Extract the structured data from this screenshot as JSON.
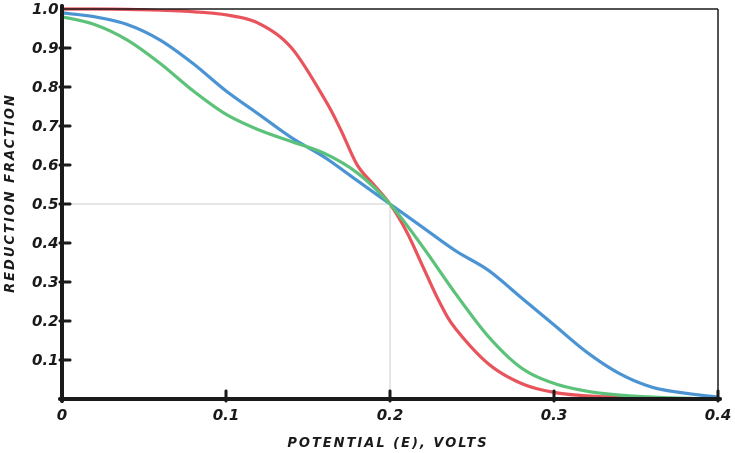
{
  "chart_data": {
    "type": "line",
    "title": "",
    "xlabel": "POTENTIAL (E), VOLTS",
    "ylabel": "REDUCTION FRACTION",
    "xlim": [
      0,
      0.4
    ],
    "ylim": [
      0,
      1.0
    ],
    "x_ticks": [
      {
        "value": 0,
        "label": "0"
      },
      {
        "value": 0.1,
        "label": "0.1"
      },
      {
        "value": 0.2,
        "label": "0.2"
      },
      {
        "value": 0.3,
        "label": "0.3"
      },
      {
        "value": 0.4,
        "label": "0.4"
      }
    ],
    "y_ticks": [
      {
        "value": 0.1,
        "label": "0.1"
      },
      {
        "value": 0.2,
        "label": "0.2"
      },
      {
        "value": 0.3,
        "label": "0.3"
      },
      {
        "value": 0.4,
        "label": "0.4"
      },
      {
        "value": 0.5,
        "label": "0.5"
      },
      {
        "value": 0.6,
        "label": "0.6"
      },
      {
        "value": 0.7,
        "label": "0.7"
      },
      {
        "value": 0.8,
        "label": "0.8"
      },
      {
        "value": 0.9,
        "label": "0.9"
      },
      {
        "value": 1.0,
        "label": "1.0"
      }
    ],
    "grid": false,
    "reference_lines": {
      "x": 0.2,
      "y": 0.5,
      "color": "#cccccc"
    },
    "series": [
      {
        "color": "#e8535c",
        "x": [
          0,
          0.02,
          0.04,
          0.06,
          0.08,
          0.1,
          0.12,
          0.14,
          0.16,
          0.17,
          0.18,
          0.19,
          0.2,
          0.21,
          0.22,
          0.23,
          0.24,
          0.26,
          0.28,
          0.3,
          0.32,
          0.34,
          0.36,
          0.38,
          0.4
        ],
        "y": [
          1.0,
          1.0,
          0.999,
          0.997,
          0.993,
          0.985,
          0.963,
          0.9,
          0.77,
          0.69,
          0.6,
          0.55,
          0.5,
          0.43,
          0.34,
          0.25,
          0.18,
          0.09,
          0.04,
          0.017,
          0.008,
          0.004,
          0.002,
          0.001,
          0.0
        ]
      },
      {
        "color": "#4b94d4",
        "x": [
          0,
          0.02,
          0.04,
          0.06,
          0.08,
          0.1,
          0.12,
          0.14,
          0.16,
          0.18,
          0.2,
          0.22,
          0.24,
          0.26,
          0.28,
          0.3,
          0.32,
          0.34,
          0.36,
          0.38,
          0.4
        ],
        "y": [
          0.99,
          0.98,
          0.96,
          0.92,
          0.86,
          0.79,
          0.73,
          0.67,
          0.62,
          0.56,
          0.5,
          0.44,
          0.38,
          0.33,
          0.26,
          0.19,
          0.12,
          0.065,
          0.03,
          0.015,
          0.005
        ]
      },
      {
        "color": "#5cc27a",
        "x": [
          0,
          0.02,
          0.04,
          0.06,
          0.08,
          0.1,
          0.12,
          0.14,
          0.16,
          0.18,
          0.2,
          0.22,
          0.24,
          0.26,
          0.28,
          0.3,
          0.32,
          0.34,
          0.36,
          0.38,
          0.4
        ],
        "y": [
          0.98,
          0.96,
          0.92,
          0.86,
          0.79,
          0.73,
          0.69,
          0.66,
          0.63,
          0.58,
          0.5,
          0.39,
          0.27,
          0.16,
          0.08,
          0.04,
          0.02,
          0.01,
          0.005,
          0.002,
          0.0
        ]
      }
    ]
  }
}
